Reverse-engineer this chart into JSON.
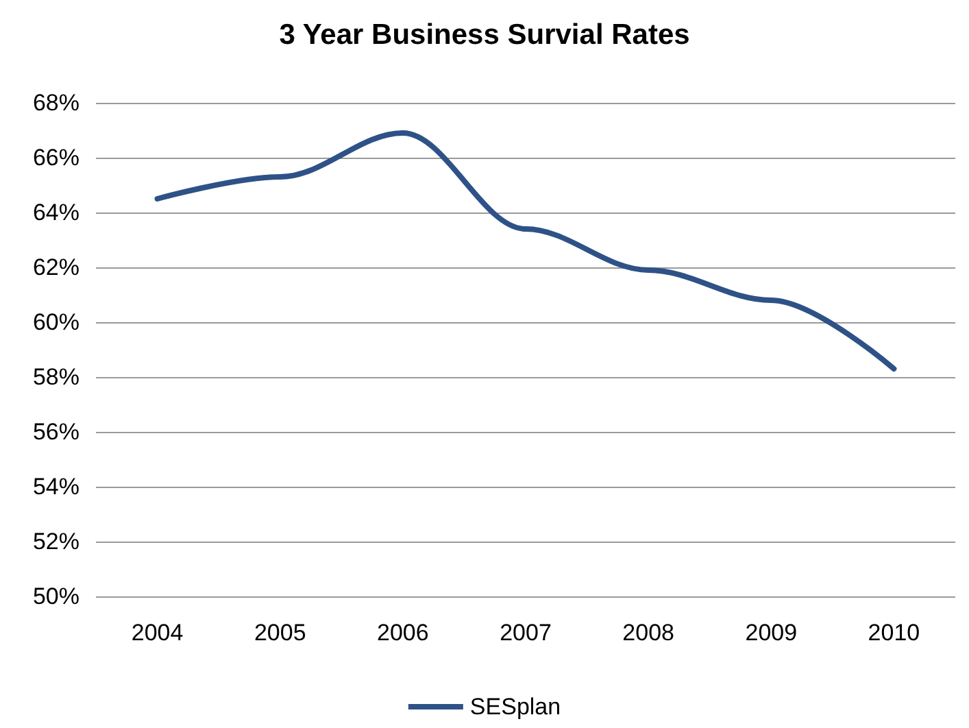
{
  "chart_data": {
    "type": "line",
    "title": "3 Year Business Survial Rates",
    "categories": [
      "2004",
      "2005",
      "2006",
      "2007",
      "2008",
      "2009",
      "2010"
    ],
    "series": [
      {
        "name": "SESplan",
        "color": "#2e5287",
        "values": [
          64.5,
          65.3,
          66.9,
          63.4,
          61.9,
          60.8,
          58.3
        ]
      }
    ],
    "ylim": [
      50,
      68
    ],
    "yticks": [
      {
        "value": 50,
        "label": "50%"
      },
      {
        "value": 52,
        "label": "52%"
      },
      {
        "value": 54,
        "label": "54%"
      },
      {
        "value": 56,
        "label": "56%"
      },
      {
        "value": 58,
        "label": "58%"
      },
      {
        "value": 60,
        "label": "60%"
      },
      {
        "value": 62,
        "label": "62%"
      },
      {
        "value": 64,
        "label": "64%"
      },
      {
        "value": 66,
        "label": "66%"
      },
      {
        "value": 68,
        "label": "68%"
      }
    ],
    "grid": "y",
    "legend": "bottom",
    "marker": "none",
    "line_style": "solid"
  }
}
